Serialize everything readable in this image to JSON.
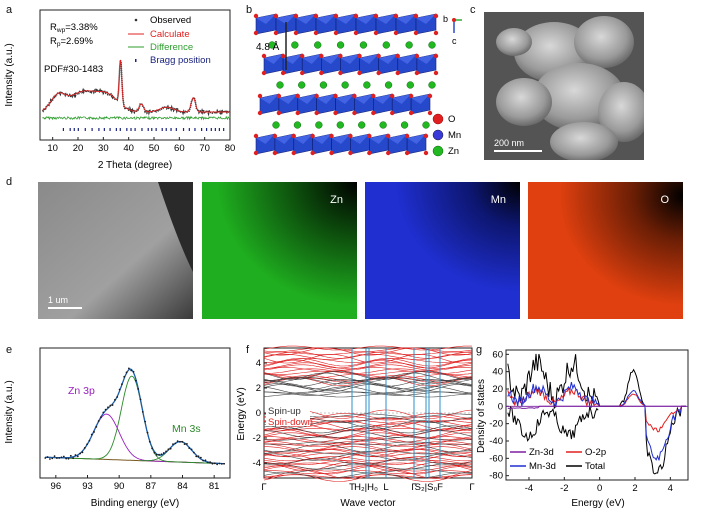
{
  "panel_labels": {
    "a": "a",
    "b": "b",
    "c": "c",
    "d": "d",
    "e": "e",
    "f": "f",
    "g": "g"
  },
  "panel_a": {
    "ylabel": "Intensity (a.u.)",
    "xlabel": "2 Theta (degree)",
    "xticks": [
      "10",
      "20",
      "30",
      "40",
      "50",
      "60",
      "70",
      "80"
    ],
    "rwp_label": "R",
    "rwp_sub": "wp",
    "rwp_value": "=3.38%",
    "rp_label": "R",
    "rp_sub": "p",
    "rp_value": "=2.69%",
    "pdf": "PDF#30-1483",
    "legend": {
      "observed": "Observed",
      "calculate": "Calculate",
      "difference": "Difference",
      "bragg": "Bragg position"
    },
    "colors": {
      "observed": "#333333",
      "calculate": "#e02020",
      "difference": "#2e9e2e",
      "bragg": "#1a237e"
    }
  },
  "panel_b": {
    "spacing": "4.8 Å",
    "axis_b": "b",
    "axis_c": "c",
    "legend": {
      "o": "O",
      "mn": "Mn",
      "zn": "Zn"
    },
    "colors": {
      "o": "#e02020",
      "mn": "#3a3ad8",
      "zn": "#22b822",
      "octahedra": "#1b3fc8"
    }
  },
  "panel_c": {
    "scale": "200 nm"
  },
  "panel_d": {
    "scale": "1 um",
    "maps": {
      "zn": "Zn",
      "mn": "Mn",
      "o": "O"
    },
    "colors": {
      "zn": "#1fae1f",
      "mn": "#1f2fd0",
      "o": "#e0400f"
    }
  },
  "panel_e": {
    "ylabel": "Intensity (a.u.)",
    "xlabel": "Binding energy (eV)",
    "xticks": [
      "96",
      "93",
      "90",
      "87",
      "84",
      "81"
    ],
    "peak_zn": "Zn 3p",
    "peak_mn": "Mn 3s",
    "colors": {
      "zn_label": "#9a20c0",
      "mn_label": "#2a8a2a",
      "fit": "#1b5ca8"
    }
  },
  "panel_f": {
    "ylabel": "Energy (eV)",
    "xlabel": "Wave vector",
    "yticks": [
      "4",
      "2",
      "0",
      "-2",
      "-4"
    ],
    "kpoints": [
      "Γ",
      "T",
      "H₂|H₀",
      "L",
      "Γ",
      "S₂|S₀",
      "F",
      "Γ"
    ],
    "spin_up": "Spin-up",
    "spin_down": "Spin-down",
    "colors": {
      "spin_up": "#444444",
      "spin_down": "#e02020",
      "kline": "#2a90c8"
    }
  },
  "panel_g": {
    "ylabel": "Density of states",
    "xlabel": "Energy (eV)",
    "yticks": [
      "60",
      "40",
      "20",
      "0",
      "-20",
      "-40",
      "-60",
      "-80"
    ],
    "xticks": [
      "-4",
      "-2",
      "0",
      "2",
      "4"
    ],
    "legend": {
      "zn3d": "Zn-3d",
      "o2p": "O-2p",
      "mn3d": "Mn-3d",
      "total": "Total"
    },
    "colors": {
      "zn3d": "#7a1fa0",
      "o2p": "#e02020",
      "mn3d": "#1f2fd0",
      "total": "#000000"
    }
  }
}
